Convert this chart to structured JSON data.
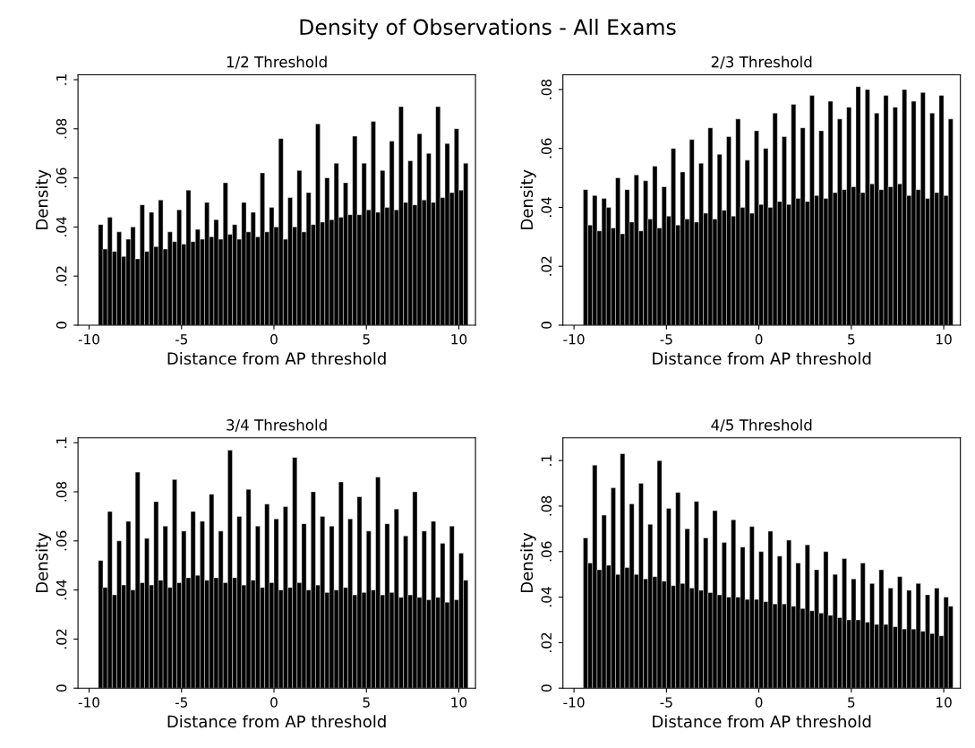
{
  "chart_data": [
    {
      "type": "histogram",
      "title": "1/2 Threshold",
      "xlabel": "Distance from AP threshold",
      "ylabel": "Density",
      "color": "#000000",
      "annotations": [
        "Density of Observations - All Exams"
      ],
      "grid": false,
      "xlim": [
        -10.6,
        10.9
      ],
      "xticks": [
        -10,
        -5,
        0,
        5,
        10
      ],
      "ylim": [
        0,
        0.102
      ],
      "yticks": [
        0,
        {
          "value": 0.02,
          "label": ".02"
        },
        {
          "value": 0.04,
          "label": ".04"
        },
        {
          "value": 0.06,
          "label": ".06"
        },
        {
          "value": 0.08,
          "label": ".08"
        },
        {
          "value": 0.1,
          "label": ".1"
        }
      ],
      "bins": [
        -9.5,
        -9.25,
        -9,
        -8.75,
        -8.5,
        -8.25,
        -8,
        -7.75,
        -7.5,
        -7.25,
        -7,
        -6.75,
        -6.5,
        -6.25,
        -6,
        -5.75,
        -5.5,
        -5.25,
        -5,
        -4.75,
        -4.5,
        -4.25,
        -4,
        -3.75,
        -3.5,
        -3.25,
        -3,
        -2.75,
        -2.5,
        -2.25,
        -2,
        -1.75,
        -1.5,
        -1.25,
        -1,
        -0.75,
        -0.5,
        -0.25,
        0,
        0.25,
        0.5,
        0.75,
        1,
        1.25,
        1.5,
        1.75,
        2,
        2.25,
        2.5,
        2.75,
        3,
        3.25,
        3.5,
        3.75,
        4,
        4.25,
        4.5,
        4.75,
        5,
        5.25,
        5.5,
        5.75,
        6,
        6.25,
        6.5,
        6.75,
        7,
        7.25,
        7.5,
        7.75,
        8,
        8.25,
        8.5,
        8.75,
        9,
        9.25,
        9.5,
        9.75,
        10,
        10.25,
        10.5
      ],
      "values": [
        0.041,
        0.031,
        0.044,
        0.03,
        0.038,
        0.028,
        0.035,
        0.04,
        0.027,
        0.049,
        0.03,
        0.046,
        0.032,
        0.051,
        0.031,
        0.038,
        0.034,
        0.047,
        0.033,
        0.055,
        0.034,
        0.039,
        0.035,
        0.05,
        0.036,
        0.043,
        0.035,
        0.058,
        0.037,
        0.041,
        0.035,
        0.05,
        0.038,
        0.046,
        0.036,
        0.062,
        0.038,
        0.048,
        0.04,
        0.076,
        0.035,
        0.052,
        0.04,
        0.063,
        0.038,
        0.054,
        0.041,
        0.082,
        0.042,
        0.06,
        0.043,
        0.066,
        0.044,
        0.058,
        0.045,
        0.077,
        0.045,
        0.066,
        0.047,
        0.083,
        0.046,
        0.063,
        0.048,
        0.075,
        0.047,
        0.089,
        0.05,
        0.067,
        0.049,
        0.078,
        0.051,
        0.07,
        0.05,
        0.089,
        0.052,
        0.074,
        0.054,
        0.08,
        0.055,
        0.066
      ]
    },
    {
      "type": "histogram",
      "title": "2/3 Threshold",
      "xlabel": "Distance from AP threshold",
      "ylabel": "Density",
      "color": "#000000",
      "grid": false,
      "xlim": [
        -10.6,
        10.9
      ],
      "xticks": [
        -10,
        -5,
        0,
        5,
        10
      ],
      "ylim": [
        0,
        0.085
      ],
      "yticks": [
        0,
        {
          "value": 0.02,
          "label": ".02"
        },
        {
          "value": 0.04,
          "label": ".04"
        },
        {
          "value": 0.06,
          "label": ".06"
        },
        {
          "value": 0.08,
          "label": ".08"
        }
      ],
      "bins": [
        -9.5,
        -9.25,
        -9,
        -8.75,
        -8.5,
        -8.25,
        -8,
        -7.75,
        -7.5,
        -7.25,
        -7,
        -6.75,
        -6.5,
        -6.25,
        -6,
        -5.75,
        -5.5,
        -5.25,
        -5,
        -4.75,
        -4.5,
        -4.25,
        -4,
        -3.75,
        -3.5,
        -3.25,
        -3,
        -2.75,
        -2.5,
        -2.25,
        -2,
        -1.75,
        -1.5,
        -1.25,
        -1,
        -0.75,
        -0.5,
        -0.25,
        0,
        0.25,
        0.5,
        0.75,
        1,
        1.25,
        1.5,
        1.75,
        2,
        2.25,
        2.5,
        2.75,
        3,
        3.25,
        3.5,
        3.75,
        4,
        4.25,
        4.5,
        4.75,
        5,
        5.25,
        5.5,
        5.75,
        6,
        6.25,
        6.5,
        6.75,
        7,
        7.25,
        7.5,
        7.75,
        8,
        8.25,
        8.5,
        8.75,
        9,
        9.25,
        9.5,
        9.75,
        10,
        10.25,
        10.5
      ],
      "values": [
        0.046,
        0.034,
        0.044,
        0.032,
        0.043,
        0.04,
        0.033,
        0.05,
        0.031,
        0.046,
        0.035,
        0.051,
        0.032,
        0.049,
        0.036,
        0.054,
        0.033,
        0.047,
        0.037,
        0.06,
        0.034,
        0.052,
        0.036,
        0.063,
        0.035,
        0.055,
        0.038,
        0.067,
        0.036,
        0.058,
        0.039,
        0.064,
        0.037,
        0.07,
        0.04,
        0.056,
        0.038,
        0.066,
        0.041,
        0.06,
        0.04,
        0.072,
        0.042,
        0.064,
        0.041,
        0.075,
        0.043,
        0.067,
        0.042,
        0.078,
        0.044,
        0.066,
        0.043,
        0.076,
        0.045,
        0.07,
        0.046,
        0.074,
        0.047,
        0.081,
        0.045,
        0.08,
        0.048,
        0.072,
        0.046,
        0.078,
        0.047,
        0.074,
        0.048,
        0.08,
        0.044,
        0.076,
        0.046,
        0.079,
        0.043,
        0.072,
        0.045,
        0.078,
        0.044,
        0.07
      ]
    },
    {
      "type": "histogram",
      "title": "3/4 Threshold",
      "xlabel": "Distance from AP threshold",
      "ylabel": "Density",
      "color": "#000000",
      "grid": false,
      "xlim": [
        -10.6,
        10.9
      ],
      "xticks": [
        -10,
        -5,
        0,
        5,
        10
      ],
      "ylim": [
        0,
        0.102
      ],
      "yticks": [
        0,
        {
          "value": 0.02,
          "label": ".02"
        },
        {
          "value": 0.04,
          "label": ".04"
        },
        {
          "value": 0.06,
          "label": ".06"
        },
        {
          "value": 0.08,
          "label": ".08"
        },
        {
          "value": 0.1,
          "label": ".1"
        }
      ],
      "bins": [
        -9.5,
        -9.25,
        -9,
        -8.75,
        -8.5,
        -8.25,
        -8,
        -7.75,
        -7.5,
        -7.25,
        -7,
        -6.75,
        -6.5,
        -6.25,
        -6,
        -5.75,
        -5.5,
        -5.25,
        -5,
        -4.75,
        -4.5,
        -4.25,
        -4,
        -3.75,
        -3.5,
        -3.25,
        -3,
        -2.75,
        -2.5,
        -2.25,
        -2,
        -1.75,
        -1.5,
        -1.25,
        -1,
        -0.75,
        -0.5,
        -0.25,
        0,
        0.25,
        0.5,
        0.75,
        1,
        1.25,
        1.5,
        1.75,
        2,
        2.25,
        2.5,
        2.75,
        3,
        3.25,
        3.5,
        3.75,
        4,
        4.25,
        4.5,
        4.75,
        5,
        5.25,
        5.5,
        5.75,
        6,
        6.25,
        6.5,
        6.75,
        7,
        7.25,
        7.5,
        7.75,
        8,
        8.25,
        8.5,
        8.75,
        9,
        9.25,
        9.5,
        9.75,
        10,
        10.25,
        10.5
      ],
      "values": [
        0.052,
        0.041,
        0.072,
        0.038,
        0.06,
        0.042,
        0.068,
        0.04,
        0.088,
        0.043,
        0.061,
        0.042,
        0.076,
        0.044,
        0.066,
        0.041,
        0.085,
        0.043,
        0.064,
        0.045,
        0.072,
        0.046,
        0.068,
        0.044,
        0.079,
        0.045,
        0.064,
        0.043,
        0.097,
        0.045,
        0.07,
        0.042,
        0.081,
        0.044,
        0.066,
        0.041,
        0.075,
        0.043,
        0.069,
        0.04,
        0.074,
        0.041,
        0.094,
        0.043,
        0.067,
        0.04,
        0.08,
        0.042,
        0.07,
        0.039,
        0.066,
        0.04,
        0.084,
        0.041,
        0.069,
        0.038,
        0.078,
        0.039,
        0.064,
        0.04,
        0.086,
        0.038,
        0.067,
        0.039,
        0.073,
        0.037,
        0.062,
        0.038,
        0.08,
        0.037,
        0.064,
        0.036,
        0.068,
        0.037,
        0.059,
        0.035,
        0.066,
        0.036,
        0.055,
        0.044
      ]
    },
    {
      "type": "histogram",
      "title": "4/5 Threshold",
      "xlabel": "Distance from AP threshold",
      "ylabel": "Density",
      "color": "#000000",
      "grid": false,
      "xlim": [
        -10.6,
        10.9
      ],
      "xticks": [
        -10,
        -5,
        0,
        5,
        10
      ],
      "ylim": [
        0,
        0.11
      ],
      "yticks": [
        0,
        {
          "value": 0.02,
          "label": ".02"
        },
        {
          "value": 0.04,
          "label": ".04"
        },
        {
          "value": 0.06,
          "label": ".06"
        },
        {
          "value": 0.08,
          "label": ".08"
        },
        {
          "value": 0.1,
          "label": ".1"
        }
      ],
      "bins": [
        -9.5,
        -9.25,
        -9,
        -8.75,
        -8.5,
        -8.25,
        -8,
        -7.75,
        -7.5,
        -7.25,
        -7,
        -6.75,
        -6.5,
        -6.25,
        -6,
        -5.75,
        -5.5,
        -5.25,
        -5,
        -4.75,
        -4.5,
        -4.25,
        -4,
        -3.75,
        -3.5,
        -3.25,
        -3,
        -2.75,
        -2.5,
        -2.25,
        -2,
        -1.75,
        -1.5,
        -1.25,
        -1,
        -0.75,
        -0.5,
        -0.25,
        0,
        0.25,
        0.5,
        0.75,
        1,
        1.25,
        1.5,
        1.75,
        2,
        2.25,
        2.5,
        2.75,
        3,
        3.25,
        3.5,
        3.75,
        4,
        4.25,
        4.5,
        4.75,
        5,
        5.25,
        5.5,
        5.75,
        6,
        6.25,
        6.5,
        6.75,
        7,
        7.25,
        7.5,
        7.75,
        8,
        8.25,
        8.5,
        8.75,
        9,
        9.25,
        9.5,
        9.75,
        10,
        10.25,
        10.5
      ],
      "values": [
        0.066,
        0.055,
        0.098,
        0.052,
        0.076,
        0.054,
        0.088,
        0.05,
        0.103,
        0.053,
        0.081,
        0.05,
        0.09,
        0.048,
        0.072,
        0.049,
        0.1,
        0.047,
        0.079,
        0.045,
        0.086,
        0.046,
        0.07,
        0.044,
        0.082,
        0.043,
        0.066,
        0.042,
        0.078,
        0.041,
        0.064,
        0.04,
        0.074,
        0.04,
        0.062,
        0.039,
        0.071,
        0.039,
        0.06,
        0.038,
        0.069,
        0.037,
        0.058,
        0.037,
        0.065,
        0.036,
        0.055,
        0.035,
        0.063,
        0.034,
        0.052,
        0.033,
        0.06,
        0.032,
        0.05,
        0.031,
        0.057,
        0.03,
        0.048,
        0.03,
        0.055,
        0.029,
        0.046,
        0.028,
        0.052,
        0.028,
        0.044,
        0.027,
        0.049,
        0.026,
        0.043,
        0.026,
        0.046,
        0.025,
        0.041,
        0.024,
        0.044,
        0.023,
        0.04,
        0.036
      ]
    }
  ]
}
